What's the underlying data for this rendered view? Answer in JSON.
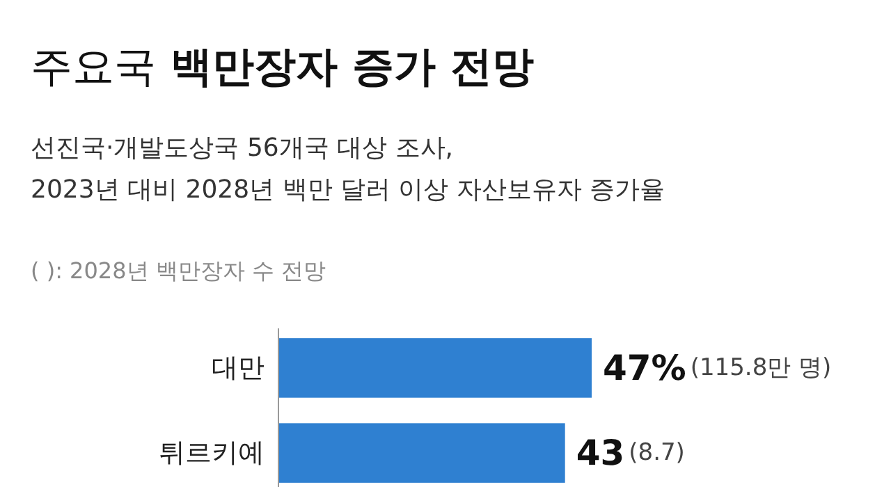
{
  "chart_data": {
    "type": "bar",
    "orientation": "horizontal",
    "title": "주요국 백만장자 증가 전망",
    "subtitle": "선진국·개발도상국 56개국 대상 조사,\n2023년 대비 2028년 백만 달러 이상 자산보유자 증가율",
    "categories": [
      "대만",
      "튀르키예"
    ],
    "values": [
      47,
      43
    ],
    "color": "#2f80d1",
    "value_labels": [
      "47%",
      "43"
    ],
    "annotations": [
      "( ): 2028년 백만장자 수 전망",
      "(115.8만 명)",
      "(8.7)"
    ]
  }
}
